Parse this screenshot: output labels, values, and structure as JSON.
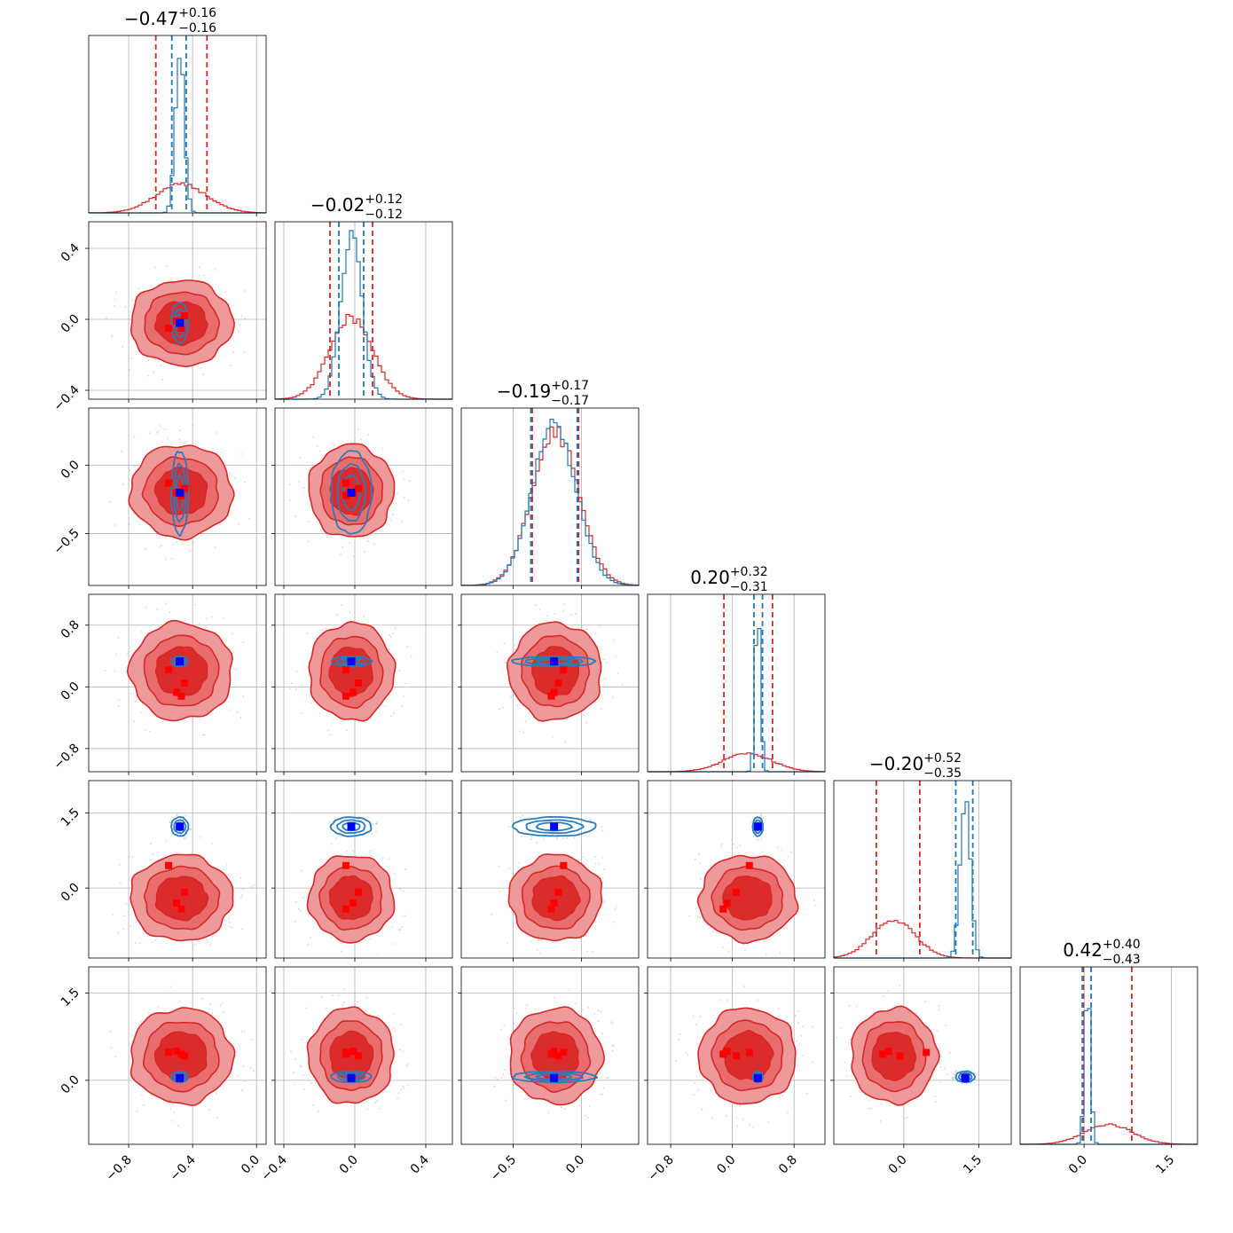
{
  "chart_data": {
    "type": "corner",
    "n_params": 6,
    "ranges": [
      [
        -1.05,
        0.06
      ],
      [
        -0.45,
        0.55
      ],
      [
        -0.88,
        0.42
      ],
      [
        -1.1,
        1.2
      ],
      [
        -1.4,
        2.15
      ],
      [
        -1.1,
        1.95
      ]
    ],
    "titles": [
      {
        "main": "−0.47",
        "plus": "+0.16",
        "minus": "−0.16"
      },
      {
        "main": "−0.02",
        "plus": "+0.12",
        "minus": "−0.12"
      },
      {
        "main": "−0.19",
        "plus": "+0.17",
        "minus": "−0.17"
      },
      {
        "main": "0.20",
        "plus": "+0.32",
        "minus": "−0.31"
      },
      {
        "main": "−0.20",
        "plus": "+0.52",
        "minus": "−0.35"
      },
      {
        "main": "0.42",
        "plus": "+0.40",
        "minus": "−0.43"
      }
    ],
    "x_ticks": [
      [
        {
          "v": -0.8,
          "label": "−0.8"
        },
        {
          "v": -0.4,
          "label": "−0.4"
        },
        {
          "v": 0.0,
          "label": "0.0"
        }
      ],
      [
        {
          "v": -0.4,
          "label": "−0.4"
        },
        {
          "v": 0.0,
          "label": "0.0"
        },
        {
          "v": 0.4,
          "label": "0.4"
        }
      ],
      [
        {
          "v": -0.5,
          "label": "−0.5"
        },
        {
          "v": 0.0,
          "label": "0.0"
        }
      ],
      [
        {
          "v": -0.8,
          "label": "−0.8"
        },
        {
          "v": 0.0,
          "label": "0.0"
        },
        {
          "v": 0.8,
          "label": "0.8"
        }
      ],
      [
        {
          "v": 0.0,
          "label": "0.0"
        },
        {
          "v": 1.5,
          "label": "1.5"
        }
      ],
      [
        {
          "v": 0.0,
          "label": "0.0"
        },
        {
          "v": 1.5,
          "label": "1.5"
        }
      ]
    ],
    "y_ticks": [
      null,
      [
        {
          "v": 0.4,
          "label": "0.4"
        },
        {
          "v": 0.0,
          "label": "0.0"
        },
        {
          "v": -0.4,
          "label": "−0.4"
        }
      ],
      [
        {
          "v": 0.0,
          "label": "0.0"
        },
        {
          "v": -0.5,
          "label": "−0.5"
        }
      ],
      [
        {
          "v": 0.8,
          "label": "0.8"
        },
        {
          "v": 0.0,
          "label": "0.0"
        },
        {
          "v": -0.8,
          "label": "−0.8"
        }
      ],
      [
        {
          "v": 1.5,
          "label": "1.5"
        },
        {
          "v": 0.0,
          "label": "0.0"
        }
      ],
      [
        {
          "v": 1.5,
          "label": "1.5"
        },
        {
          "v": 0.0,
          "label": "0.0"
        }
      ]
    ],
    "series": [
      {
        "color": "#d62728",
        "means": [
          -0.47,
          -0.02,
          -0.19,
          0.2,
          -0.2,
          0.42
        ],
        "sigmas": [
          0.16,
          0.12,
          0.17,
          0.315,
          0.43,
          0.41
        ],
        "quantiles": [
          [
            -0.63,
            -0.31
          ],
          [
            -0.14,
            0.1
          ],
          [
            -0.36,
            -0.02
          ],
          [
            -0.11,
            0.52
          ],
          [
            -0.55,
            0.32
          ],
          [
            -0.01,
            0.82
          ]
        ]
      },
      {
        "color": "#1f77b4",
        "means": [
          -0.48,
          -0.02,
          -0.2,
          0.33,
          1.23,
          0.06
        ],
        "sigmas": [
          0.028,
          0.06,
          0.16,
          0.035,
          0.1,
          0.05
        ],
        "quantiles": [
          [
            -0.53,
            -0.44
          ],
          [
            -0.09,
            0.05
          ],
          [
            -0.37,
            -0.03
          ],
          [
            0.28,
            0.39
          ],
          [
            1.04,
            1.38
          ],
          [
            -0.03,
            0.12
          ]
        ]
      }
    ],
    "truth_markers": {
      "blue": [
        -0.48,
        -0.02,
        -0.2,
        0.33,
        1.23,
        0.04
      ],
      "red": [
        [
          -0.55,
          -0.05,
          -0.13,
          0.22,
          0.45,
          0.48
        ],
        [
          -0.45,
          0.02,
          -0.17,
          0.05,
          -0.08,
          0.42
        ],
        [
          -0.5,
          -0.01,
          -0.2,
          -0.07,
          -0.3,
          0.5
        ],
        [
          -0.47,
          -0.05,
          -0.22,
          -0.12,
          -0.42,
          0.45
        ]
      ]
    },
    "grid": true,
    "legend": "none"
  }
}
